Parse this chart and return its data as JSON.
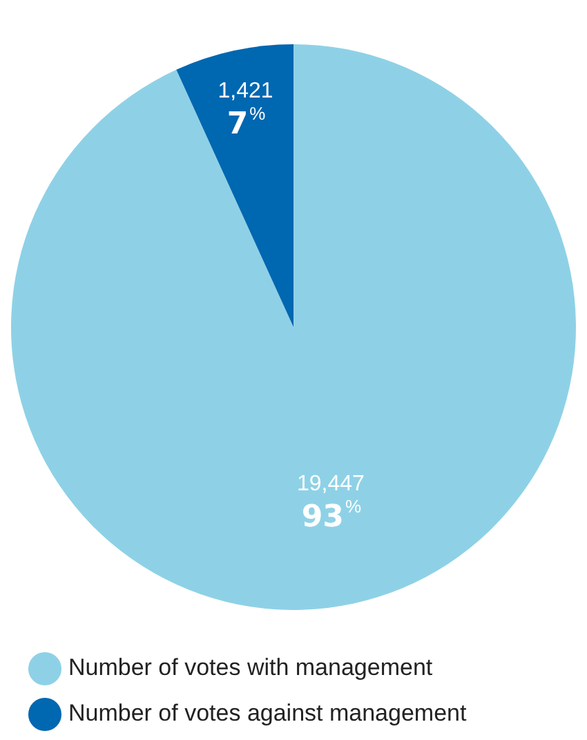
{
  "chart_data": {
    "type": "pie",
    "categories": [
      "Number of votes with management",
      "Number of votes against management"
    ],
    "values": [
      19447,
      1421
    ],
    "colors": [
      "#8ed1e6",
      "#0067b1"
    ],
    "value_labels": [
      "19,447 93%",
      "1,421 7%"
    ],
    "legend": "bottom left"
  }
}
